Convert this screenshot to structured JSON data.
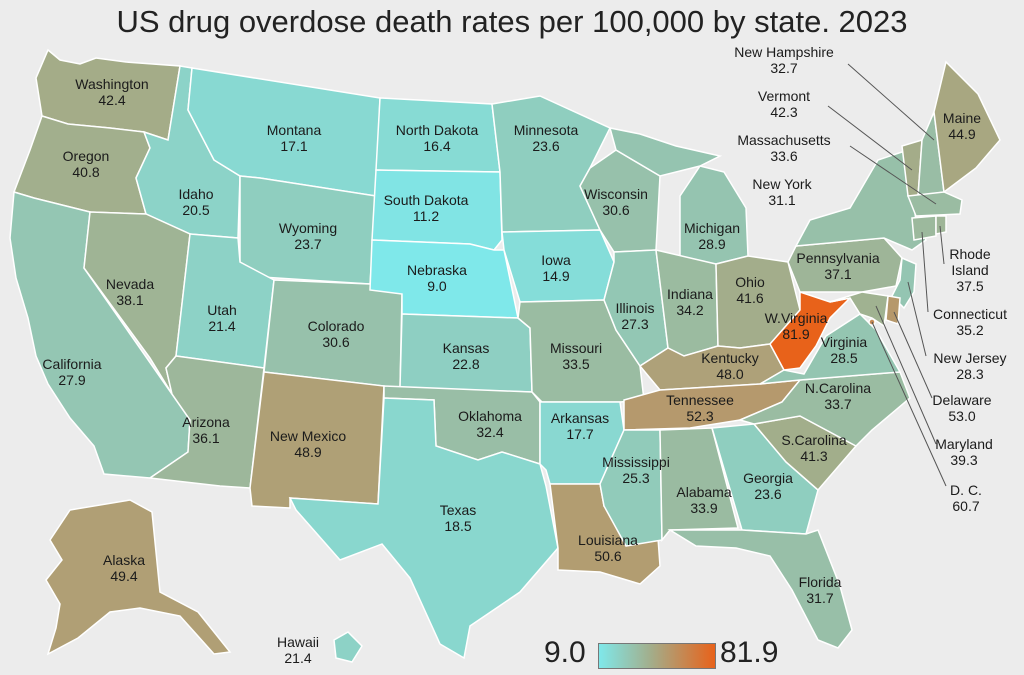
{
  "title": "US drug overdose death rates per 100,000 by state. 2023",
  "legend": {
    "min_label": "9.0",
    "max_label": "81.9",
    "min_value": 9.0,
    "max_value": 81.9,
    "low_color": "#7fe8ea",
    "mid_color": "#a3ad8a",
    "high_color": "#e8621a"
  },
  "colors": {
    "background": "#ececec",
    "border": "#ffffff",
    "leader": "#555555"
  },
  "states": [
    {
      "id": "wa",
      "name": "Washington",
      "rate": "42.4",
      "value": 42.4
    },
    {
      "id": "or",
      "name": "Oregon",
      "rate": "40.8",
      "value": 40.8
    },
    {
      "id": "ca",
      "name": "California",
      "rate": "27.9",
      "value": 27.9
    },
    {
      "id": "id",
      "name": "Idaho",
      "rate": "20.5",
      "value": 20.5
    },
    {
      "id": "nv",
      "name": "Nevada",
      "rate": "38.1",
      "value": 38.1
    },
    {
      "id": "mt",
      "name": "Montana",
      "rate": "17.1",
      "value": 17.1
    },
    {
      "id": "wy",
      "name": "Wyoming",
      "rate": "23.7",
      "value": 23.7
    },
    {
      "id": "ut",
      "name": "Utah",
      "rate": "21.4",
      "value": 21.4
    },
    {
      "id": "az",
      "name": "Arizona",
      "rate": "36.1",
      "value": 36.1
    },
    {
      "id": "co",
      "name": "Colorado",
      "rate": "30.6",
      "value": 30.6
    },
    {
      "id": "nm",
      "name": "New Mexico",
      "rate": "48.9",
      "value": 48.9
    },
    {
      "id": "nd",
      "name": "North Dakota",
      "rate": "16.4",
      "value": 16.4
    },
    {
      "id": "sd",
      "name": "South Dakota",
      "rate": "11.2",
      "value": 11.2
    },
    {
      "id": "ne",
      "name": "Nebraska",
      "rate": "9.0",
      "value": 9.0
    },
    {
      "id": "ks",
      "name": "Kansas",
      "rate": "22.8",
      "value": 22.8
    },
    {
      "id": "ok",
      "name": "Oklahoma",
      "rate": "32.4",
      "value": 32.4
    },
    {
      "id": "tx",
      "name": "Texas",
      "rate": "18.5",
      "value": 18.5
    },
    {
      "id": "mn",
      "name": "Minnesota",
      "rate": "23.6",
      "value": 23.6
    },
    {
      "id": "ia",
      "name": "Iowa",
      "rate": "14.9",
      "value": 14.9
    },
    {
      "id": "mo",
      "name": "Missouri",
      "rate": "33.5",
      "value": 33.5
    },
    {
      "id": "ar",
      "name": "Arkansas",
      "rate": "17.7",
      "value": 17.7
    },
    {
      "id": "la",
      "name": "Louisiana",
      "rate": "50.6",
      "value": 50.6
    },
    {
      "id": "wi",
      "name": "Wisconsin",
      "rate": "30.6",
      "value": 30.6
    },
    {
      "id": "il",
      "name": "Illinois",
      "rate": "27.3",
      "value": 27.3
    },
    {
      "id": "mi",
      "name": "Michigan",
      "rate": "28.9",
      "value": 28.9
    },
    {
      "id": "in",
      "name": "Indiana",
      "rate": "34.2",
      "value": 34.2
    },
    {
      "id": "oh",
      "name": "Ohio",
      "rate": "41.6",
      "value": 41.6
    },
    {
      "id": "ky",
      "name": "Kentucky",
      "rate": "48.0",
      "value": 48.0
    },
    {
      "id": "tn",
      "name": "Tennessee",
      "rate": "52.3",
      "value": 52.3
    },
    {
      "id": "ms",
      "name": "Mississippi",
      "rate": "25.3",
      "value": 25.3
    },
    {
      "id": "al",
      "name": "Alabama",
      "rate": "33.9",
      "value": 33.9
    },
    {
      "id": "ga",
      "name": "Georgia",
      "rate": "23.6",
      "value": 23.6
    },
    {
      "id": "fl",
      "name": "Florida",
      "rate": "31.7",
      "value": 31.7
    },
    {
      "id": "sc",
      "name": "S.Carolina",
      "rate": "41.3",
      "value": 41.3
    },
    {
      "id": "nc",
      "name": "N.Carolina",
      "rate": "33.7",
      "value": 33.7
    },
    {
      "id": "va",
      "name": "Virginia",
      "rate": "28.5",
      "value": 28.5
    },
    {
      "id": "wv",
      "name": "W.Virginia",
      "rate": "81.9",
      "value": 81.9
    },
    {
      "id": "pa",
      "name": "Pennsylvania",
      "rate": "37.1",
      "value": 37.1
    },
    {
      "id": "ny",
      "name": "New York",
      "rate": "31.1",
      "value": 31.1
    },
    {
      "id": "me",
      "name": "Maine",
      "rate": "44.9",
      "value": 44.9
    },
    {
      "id": "vt",
      "name": "Vermont",
      "rate": "42.3",
      "value": 42.3
    },
    {
      "id": "nh",
      "name": "New Hampshire",
      "rate": "32.7",
      "value": 32.7
    },
    {
      "id": "ma",
      "name": "Massachusetts",
      "rate": "33.6",
      "value": 33.6
    },
    {
      "id": "ri",
      "name": "Rhode Island",
      "rate": "37.5",
      "value": 37.5
    },
    {
      "id": "ct",
      "name": "Connecticut",
      "rate": "35.2",
      "value": 35.2
    },
    {
      "id": "nj",
      "name": "New Jersey",
      "rate": "28.3",
      "value": 28.3
    },
    {
      "id": "de",
      "name": "Delaware",
      "rate": "53.0",
      "value": 53.0
    },
    {
      "id": "md",
      "name": "Maryland",
      "rate": "39.3",
      "value": 39.3
    },
    {
      "id": "dc",
      "name": "D. C.",
      "rate": "60.7",
      "value": 60.7
    },
    {
      "id": "ak",
      "name": "Alaska",
      "rate": "49.4",
      "value": 49.4
    },
    {
      "id": "hi",
      "name": "Hawaii",
      "rate": "21.4",
      "value": 21.4
    }
  ]
}
